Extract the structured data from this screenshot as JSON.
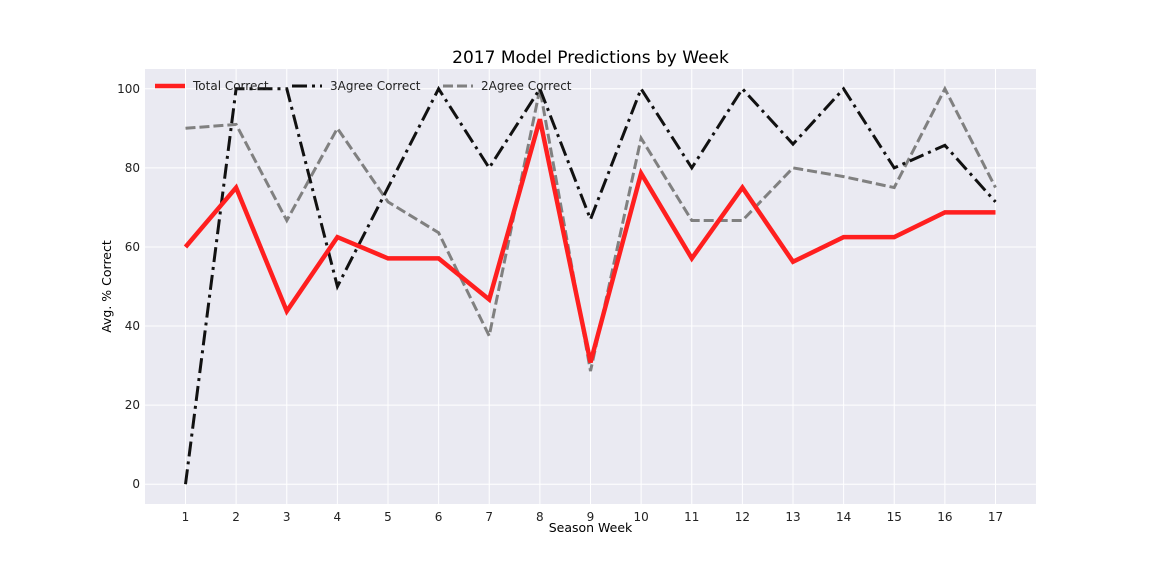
{
  "chart_data": {
    "type": "line",
    "title": "2017 Model Predictions by Week",
    "xlabel": "Season Week",
    "ylabel": "Avg. % Correct",
    "x": [
      1,
      2,
      3,
      4,
      5,
      6,
      7,
      8,
      9,
      10,
      11,
      12,
      13,
      14,
      15,
      16,
      17
    ],
    "x_tick_labels": [
      "1",
      "2",
      "3",
      "4",
      "5",
      "6",
      "7",
      "8",
      "9",
      "10",
      "11",
      "12",
      "13",
      "14",
      "15",
      "16",
      "17"
    ],
    "y_ticks": [
      0,
      20,
      40,
      60,
      80,
      100
    ],
    "y_tick_labels": [
      "0",
      "20",
      "40",
      "60",
      "80",
      "100"
    ],
    "xlim": [
      0.2,
      17.8
    ],
    "ylim": [
      -5,
      105
    ],
    "grid": true,
    "legend_position": "top-left",
    "background_color": "#eaeaf2",
    "series": [
      {
        "name": "Total Correct",
        "color": "#ff1f1f",
        "style": "solid",
        "values": [
          60.0,
          75.0,
          43.75,
          62.5,
          57.1,
          57.1,
          46.7,
          92.3,
          30.8,
          78.6,
          57.1,
          75.0,
          56.25,
          62.5,
          62.5,
          68.75,
          68.75
        ]
      },
      {
        "name": "3Agree Correct",
        "color": "#111111",
        "style": "dashdot",
        "values": [
          0,
          100,
          100,
          50,
          75,
          100,
          80,
          100,
          67,
          100,
          80,
          100,
          86,
          100,
          80,
          85.7,
          71.4
        ]
      },
      {
        "name": "2Agree Correct",
        "color": "#808080",
        "style": "dashed",
        "values": [
          90,
          91,
          66.7,
          90,
          71.4,
          63.6,
          37.5,
          100,
          28.6,
          87.5,
          66.7,
          66.7,
          80,
          77.8,
          75,
          100,
          75
        ]
      }
    ]
  }
}
